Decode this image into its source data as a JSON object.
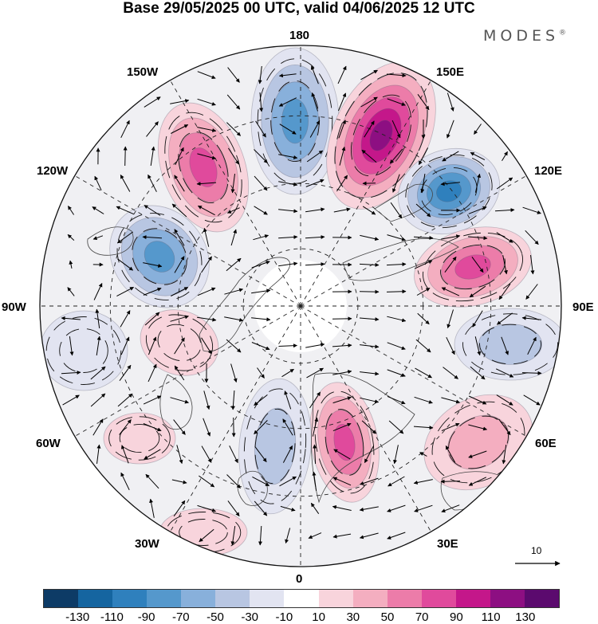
{
  "title": "Base 29/05/2025 00 UTC, valid 04/06/2025 12 UTC",
  "brand": "MODES",
  "brand_mark": "®",
  "longitude_labels": [
    "180",
    "150E",
    "120E",
    "90E",
    "60E",
    "30E",
    "0",
    "30W",
    "60W",
    "90W",
    "120W",
    "150W"
  ],
  "reference_vector_label": "10",
  "colorbar": {
    "colors": [
      "#0d3b66",
      "#1565a0",
      "#2f80bd",
      "#5598cc",
      "#88b0db",
      "#b8c6e2",
      "#e2e4f1",
      "#ffffff",
      "#f8d4dc",
      "#f4aec0",
      "#ec7ca9",
      "#e04a9c",
      "#c4178a",
      "#8d0f82",
      "#5b0a6e"
    ],
    "labels": [
      "-130",
      "-110",
      "-90",
      "-70",
      "-50",
      "-30",
      "-10",
      "10",
      "30",
      "50",
      "70",
      "90",
      "110",
      "130"
    ]
  },
  "anomaly_centers": [
    {
      "name": "neg-180",
      "level": -90
    },
    {
      "name": "pos-150E",
      "level": 130
    },
    {
      "name": "neg-120E",
      "level": -110
    },
    {
      "name": "pos-100E",
      "level": 90
    },
    {
      "name": "neg-80E",
      "level": -50
    },
    {
      "name": "pos-140W",
      "level": 90
    },
    {
      "name": "neg-110W",
      "level": -90
    },
    {
      "name": "pos-80W",
      "level": 30
    },
    {
      "name": "neg-90W",
      "level": -30
    },
    {
      "name": "pos-20E",
      "level": 90
    },
    {
      "name": "neg-10W",
      "level": -50
    },
    {
      "name": "pos-60E",
      "level": 50
    },
    {
      "name": "pos-45W",
      "level": 30
    },
    {
      "name": "pos-30W",
      "level": 30
    }
  ]
}
